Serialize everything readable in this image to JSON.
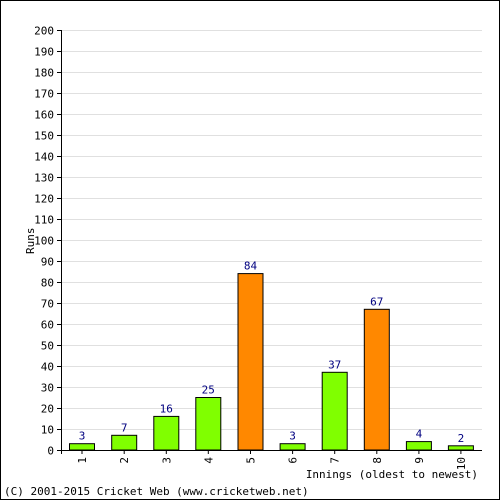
{
  "chart_data": {
    "type": "bar",
    "categories": [
      "1",
      "2",
      "3",
      "4",
      "5",
      "6",
      "7",
      "8",
      "9",
      "10"
    ],
    "values": [
      3,
      7,
      16,
      25,
      84,
      3,
      37,
      67,
      4,
      2
    ],
    "data_labels": [
      "3",
      "7",
      "16",
      "25",
      "84",
      "3",
      "37",
      "67",
      "4",
      "2"
    ],
    "bar_colors": [
      "#80ff00",
      "#80ff00",
      "#80ff00",
      "#80ff00",
      "#ff8800",
      "#80ff00",
      "#80ff00",
      "#ff8800",
      "#80ff00",
      "#80ff00"
    ],
    "title": "",
    "xlabel": "Innings (oldest to newest)",
    "ylabel": "Runs",
    "ylim": [
      0,
      200
    ],
    "ytick_step": 10,
    "yticks": [
      "0",
      "10",
      "20",
      "30",
      "40",
      "50",
      "60",
      "70",
      "80",
      "90",
      "100",
      "110",
      "120",
      "130",
      "140",
      "150",
      "160",
      "170",
      "180",
      "190",
      "200"
    ],
    "grid": true,
    "legend": "none"
  },
  "footer": {
    "copyright": "(C) 2001-2015 Cricket Web (www.cricketweb.net)"
  },
  "colors": {
    "normal_bar": "#80ff00",
    "highlight_bar": "#ff8800",
    "value_label": "#000080",
    "grid": "#e0e0e0"
  }
}
